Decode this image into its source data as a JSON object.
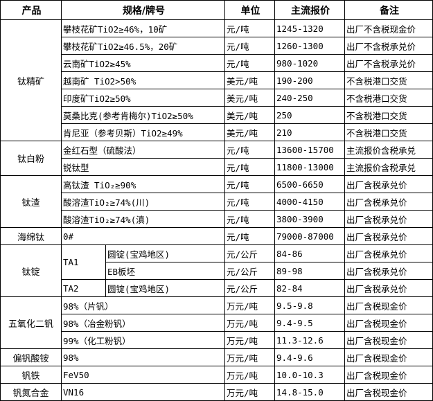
{
  "headers": [
    "产品",
    "规格/牌号",
    "单位",
    "主流报价",
    "备注"
  ],
  "groups": [
    {
      "product": "钛精矿",
      "rows": [
        {
          "spec": "攀枝花矿TiO2≥46%，10矿",
          "unit": "元/吨",
          "price": "1245-1320",
          "note": "出厂不含税现金价"
        },
        {
          "spec": "攀枝花矿TiO2≥46.5%，20矿",
          "unit": "元/吨",
          "price": "1260-1300",
          "note": "出厂不含税承兑价"
        },
        {
          "spec": "云南矿TiO2≥45%",
          "unit": "元/吨",
          "price": "980-1020",
          "note": "出厂不含税承兑价"
        },
        {
          "spec": "越南矿 TiO2>50%",
          "unit": "美元/吨",
          "price": "190-200",
          "note": "不含税港口交货"
        },
        {
          "spec": "印度矿TiO2≥50%",
          "unit": "美元/吨",
          "price": "240-250",
          "note": "不含税港口交货"
        },
        {
          "spec": "莫桑比克(参考肯梅尔)TiO2≥50%",
          "unit": "美元/吨",
          "price": "250",
          "note": "不含税港口交货"
        },
        {
          "spec": "肯尼亚（参考贝斯）TiO2≥49%",
          "unit": "美元/吨",
          "price": "210",
          "note": "不含税港口交货"
        }
      ]
    },
    {
      "product": "钛白粉",
      "rows": [
        {
          "spec": "金红石型（硫酸法）",
          "unit": "元/吨",
          "price": "13600-15700",
          "note": "主流报价含税承兑"
        },
        {
          "spec": "锐钛型",
          "unit": "元/吨",
          "price": "11800-13000",
          "note": "主流报价含税承兑"
        }
      ]
    },
    {
      "product": "钛渣",
      "rows": [
        {
          "spec": "高钛渣 TiO₂≥90%",
          "unit": "元/吨",
          "price": "6500-6650",
          "note": "出厂含税承兑价"
        },
        {
          "spec": "酸溶渣TiO₂≥74%(川)",
          "unit": "元/吨",
          "price": "4000-4150",
          "note": "出厂含税承兑价"
        },
        {
          "spec": "酸溶渣TiO₂≥74%(滇)",
          "unit": "元/吨",
          "price": "3800-3900",
          "note": "出厂含税承兑价"
        }
      ]
    },
    {
      "product": "海绵钛",
      "rows": [
        {
          "spec": "0#",
          "unit": "元/吨",
          "price": "79000-87000",
          "note": "出厂含税承兑价"
        }
      ]
    },
    {
      "product": "钛锭",
      "subgroups": [
        {
          "grade": "TA1",
          "rows": [
            {
              "spec": "圆锭(宝鸡地区)",
              "unit": "元/公斤",
              "price": "84-86",
              "note": "出厂含税承兑价"
            },
            {
              "spec": "EB板坯",
              "unit": "元/公斤",
              "price": "89-98",
              "note": "出厂含税承兑价"
            }
          ]
        },
        {
          "grade": "TA2",
          "rows": [
            {
              "spec": "圆锭(宝鸡地区)",
              "unit": "元/公斤",
              "price": "82-84",
              "note": "出厂含税承兑价"
            }
          ]
        }
      ]
    },
    {
      "product": "五氧化二钒",
      "rows": [
        {
          "spec": "98%（片钒）",
          "unit": "万元/吨",
          "price": "9.5-9.8",
          "note": "出厂含税现金价"
        },
        {
          "spec": "98%（冶金粉钒）",
          "unit": "万元/吨",
          "price": "9.4-9.5",
          "note": "出厂含税现金价"
        },
        {
          "spec": "99%（化工粉钒）",
          "unit": "万元/吨",
          "price": "11.3-12.6",
          "note": "出厂含税现金价"
        }
      ]
    },
    {
      "product": "偏钒酸铵",
      "rows": [
        {
          "spec": "98%",
          "unit": "万元/吨",
          "price": "9.4-9.6",
          "note": "出厂含税现金价"
        }
      ]
    },
    {
      "product": "钒铁",
      "rows": [
        {
          "spec": "FeV50",
          "unit": "万元/吨",
          "price": "10.0-10.3",
          "note": "出厂含税现金价"
        }
      ]
    },
    {
      "product": "钒氮合金",
      "rows": [
        {
          "spec": "VN16",
          "unit": "万元/吨",
          "price": "14.8-15.0",
          "note": "出厂含税现金价"
        }
      ]
    }
  ]
}
